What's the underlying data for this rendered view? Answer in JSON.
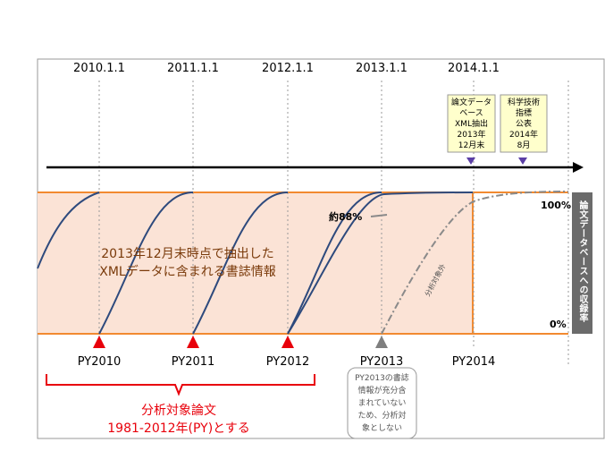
{
  "timeline": {
    "dates": [
      "2010.1.1",
      "2011.1.1",
      "2012.1.1",
      "2013.1.1",
      "2014.1.1"
    ]
  },
  "events": [
    {
      "lines": [
        "論文データ",
        "ベース",
        "XML抽出",
        "2013年",
        "12月末"
      ]
    },
    {
      "lines": [
        "科学技術",
        "指標",
        "公表",
        "2014年",
        "8月"
      ]
    }
  ],
  "band": {
    "text_lines": [
      "2013年12月末時点で抽出した",
      "XMLデータに含まれる書誌情報"
    ],
    "percent_label": "約88%",
    "excluded_label": "分析対象外"
  },
  "scale": {
    "top": "100%",
    "bottom": "0%",
    "vertical_label": "論文データベースへの収録率"
  },
  "publication_years": [
    "PY2010",
    "PY2011",
    "PY2012",
    "PY2013",
    "PY2014"
  ],
  "py2013_note_lines": [
    "PY2013の書誌",
    "情報が充分含",
    "まれていない",
    "ため、分析対",
    "象としない"
  ],
  "analysis_target": {
    "title": "分析対象論文",
    "subtitle": "1981-2012年(PY)とする"
  },
  "colors": {
    "band_fill": "#fbe3d6",
    "orange": "#f28a30",
    "curve": "#2e4a7d",
    "red": "#e8000b",
    "gray": "#7f7f7f",
    "purple": "#5b3fa5",
    "callout_fill": "#ffffcc",
    "dark_panel": "#6b6b6b"
  }
}
